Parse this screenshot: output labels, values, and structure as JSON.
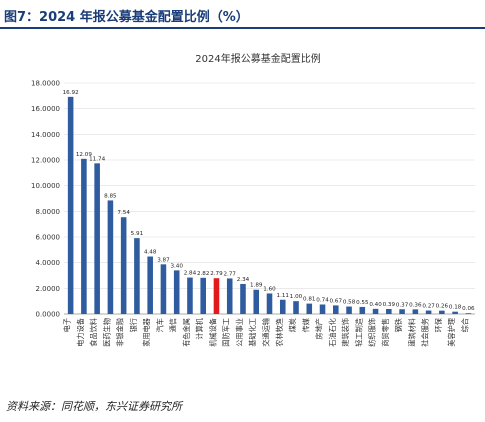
{
  "figure": {
    "label": "图7：",
    "caption": "2024 年报公募基金配置比例（%）"
  },
  "source": "资料来源：同花顺，东兴证券研究所",
  "colors": {
    "bar": "#2e5c9e",
    "highlight_bar": "#e11b1b",
    "header_text": "#1a3c78",
    "grid": "#dddddd"
  },
  "chart_data": {
    "type": "bar",
    "title": "2024年报公募基金配置比例",
    "xlabel": "",
    "ylabel": "",
    "ylim": [
      0,
      18
    ],
    "yticks": [
      "0.0000",
      "2.0000",
      "4.0000",
      "6.0000",
      "8.0000",
      "10.0000",
      "12.0000",
      "14.0000",
      "16.0000",
      "18.0000"
    ],
    "grid": true,
    "legend": "none",
    "highlight_category": "机械设备",
    "categories": [
      "电子",
      "电力设备",
      "食品饮料",
      "医药生物",
      "非银金融",
      "银行",
      "家用电器",
      "汽车",
      "通信",
      "有色金属",
      "计算机",
      "机械设备",
      "国防军工",
      "公用事业",
      "基础化工",
      "交通运输",
      "农林牧渔",
      "煤炭",
      "传媒",
      "房地产",
      "石油石化",
      "建筑装饰",
      "轻工制造",
      "纺织服饰",
      "商贸零售",
      "钢铁",
      "建筑材料",
      "社会服务",
      "环保",
      "美容护理",
      "综合"
    ],
    "values": [
      16.92,
      12.09,
      11.74,
      8.85,
      7.54,
      5.91,
      4.48,
      3.87,
      3.4,
      2.84,
      2.82,
      2.79,
      2.77,
      2.34,
      1.89,
      1.6,
      1.11,
      1.0,
      0.81,
      0.74,
      0.67,
      0.58,
      0.55,
      0.4,
      0.39,
      0.37,
      0.36,
      0.27,
      0.26,
      0.18,
      0.06
    ],
    "labels": [
      "16.92",
      "12.09",
      "11.74",
      "8.85",
      "7.54",
      "5.91",
      "4.48",
      "3.87",
      "3.40",
      "2.84",
      "2.82",
      "2.79",
      "2.77",
      "2.34",
      "1.89",
      "1.60",
      "1.11",
      "1.00",
      "0.81",
      "0.74",
      "0.67",
      "0.58",
      "0.55",
      "0.40",
      "0.39",
      "0.37",
      "0.36",
      "0.27",
      "0.26",
      "0.18",
      "0.06"
    ]
  }
}
